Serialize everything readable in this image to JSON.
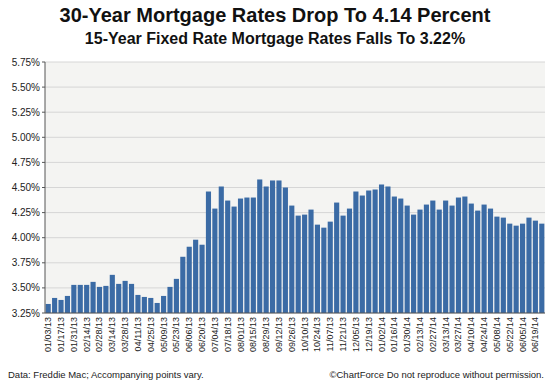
{
  "chart_data": {
    "type": "bar",
    "title": "30-Year Mortgage Rates Drop To 4.14 Percent",
    "subtitle": "15-Year Fixed Rate Mortgage Rates Falls To 3.22%",
    "annotations": [
      "Data: Freddie Mac; Accompanying points vary.",
      "©ChartForce  Do not reproduce without permission."
    ],
    "categories": [
      "01/03/13",
      null,
      "01/17/13",
      null,
      "01/31/13",
      null,
      "02/14/13",
      null,
      "02/28/13",
      null,
      "03/14/13",
      null,
      "03/28/13",
      null,
      "04/11/13",
      null,
      "04/25/13",
      null,
      "05/09/13",
      null,
      "05/23/13",
      null,
      "06/06/13",
      null,
      "06/20/13",
      null,
      "07/04/13",
      null,
      "07/18/13",
      null,
      "08/01/13",
      null,
      "08/15/13",
      null,
      "08/29/13",
      null,
      "09/12/13",
      null,
      "09/26/13",
      null,
      "10/10/13",
      null,
      "10/24/13",
      null,
      "11/07/13",
      null,
      "11/21/13",
      null,
      "12/05/13",
      null,
      "12/19/13",
      null,
      "01/02/14",
      null,
      "01/16/14",
      null,
      "01/30/14",
      null,
      "02/13/14",
      null,
      "02/27/14",
      null,
      "03/13/14",
      null,
      "03/27/14",
      null,
      "04/10/14",
      null,
      "04/24/14",
      null,
      "05/08/14",
      null,
      "05/22/14",
      null,
      "06/05/14",
      null,
      "06/19/14",
      null
    ],
    "values": [
      3.34,
      3.4,
      3.38,
      3.42,
      3.53,
      3.53,
      3.53,
      3.56,
      3.51,
      3.52,
      3.63,
      3.54,
      3.57,
      3.54,
      3.43,
      3.41,
      3.4,
      3.35,
      3.42,
      3.51,
      3.59,
      3.81,
      3.91,
      3.98,
      3.93,
      4.46,
      4.29,
      4.51,
      4.37,
      4.31,
      4.39,
      4.4,
      4.4,
      4.58,
      4.51,
      4.57,
      4.57,
      4.5,
      4.32,
      4.22,
      4.23,
      4.28,
      4.13,
      4.1,
      4.16,
      4.35,
      4.22,
      4.29,
      4.46,
      4.42,
      4.47,
      4.48,
      4.53,
      4.51,
      4.41,
      4.39,
      4.32,
      4.23,
      4.28,
      4.33,
      4.37,
      4.28,
      4.37,
      4.32,
      4.4,
      4.41,
      4.34,
      4.27,
      4.33,
      4.29,
      4.21,
      4.2,
      4.14,
      4.12,
      4.14,
      4.2,
      4.17,
      4.14
    ],
    "color": "#3b6ba5",
    "ylim": [
      3.25,
      5.75
    ],
    "yticks": [
      {
        "value": 3.25,
        "label": "3.25%"
      },
      {
        "value": 3.5,
        "label": "3.50%"
      },
      {
        "value": 3.75,
        "label": "3.75%"
      },
      {
        "value": 4.0,
        "label": "4.00%"
      },
      {
        "value": 4.25,
        "label": "4.25%"
      },
      {
        "value": 4.5,
        "label": "4.50%"
      },
      {
        "value": 4.75,
        "label": "4.75%"
      },
      {
        "value": 5.0,
        "label": "5.00%"
      },
      {
        "value": 5.25,
        "label": "5.25%"
      },
      {
        "value": 5.5,
        "label": "5.50%"
      },
      {
        "value": 5.75,
        "label": "5.75%"
      }
    ],
    "grid": true
  }
}
